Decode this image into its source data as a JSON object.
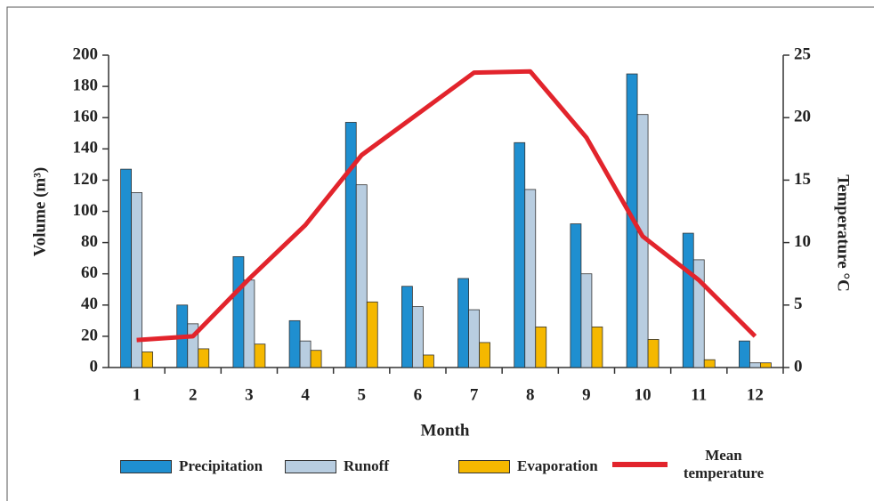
{
  "chart_data": {
    "type": "bar-line",
    "x_label": "Month",
    "y_label": "Volume (m³)",
    "y2_label": "Temperature °C",
    "categories": [
      "1",
      "2",
      "3",
      "4",
      "5",
      "6",
      "7",
      "8",
      "9",
      "10",
      "11",
      "12"
    ],
    "series": [
      {
        "name": "Precipitation",
        "type": "bar",
        "color": "#1f8fd0",
        "values": [
          127,
          40,
          71,
          30,
          157,
          52,
          57,
          144,
          92,
          188,
          86,
          17
        ]
      },
      {
        "name": "Runoff",
        "type": "bar",
        "color": "#b8cde0",
        "values": [
          112,
          28,
          56,
          17,
          117,
          39,
          37,
          114,
          60,
          162,
          69,
          3
        ]
      },
      {
        "name": "Evaporation",
        "type": "bar",
        "color": "#f5b800",
        "values": [
          10,
          12,
          15,
          11,
          42,
          8,
          16,
          26,
          26,
          18,
          5,
          3
        ]
      },
      {
        "name": "Mean temperature",
        "type": "line",
        "axis": "y2",
        "color": "#e2242c",
        "values": [
          2.2,
          2.5,
          7.1,
          11.4,
          17,
          20.3,
          23.6,
          23.7,
          18.4,
          10.5,
          7,
          2.5
        ]
      }
    ],
    "ylim": [
      0,
      200
    ],
    "yticks": [
      0,
      20,
      40,
      60,
      80,
      100,
      120,
      140,
      160,
      180,
      200
    ],
    "y2lim": [
      0,
      25
    ],
    "y2ticks": [
      0,
      5,
      10,
      15,
      20,
      25
    ],
    "grid": false
  }
}
